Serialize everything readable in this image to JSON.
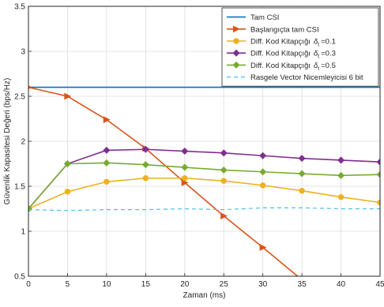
{
  "chart_data": {
    "type": "line",
    "title": "",
    "xlabel": "Zaman (ms)",
    "ylabel": "Güvenlik Kapasitesi Değeri (bps/Hz)",
    "xlim": [
      0,
      45
    ],
    "ylim": [
      0.5,
      3.5
    ],
    "xticks": [
      "0",
      "5",
      "10",
      "15",
      "20",
      "25",
      "30",
      "35",
      "40",
      "45"
    ],
    "yticks": [
      "0.5",
      "1",
      "1.5",
      "2",
      "2.5",
      "3",
      "3.5"
    ],
    "grid": true,
    "legend_position": "top-right",
    "x": [
      0,
      5,
      10,
      15,
      20,
      25,
      30,
      35,
      40,
      45
    ],
    "series": [
      {
        "name": "Tam CSI",
        "color": "#0072bd",
        "style": "solid",
        "marker": "none",
        "values": [
          2.6,
          2.6,
          2.6,
          2.6,
          2.6,
          2.6,
          2.6,
          2.6,
          2.6,
          2.6
        ]
      },
      {
        "name": "Başlangıçta tam CSI",
        "color": "#d95319",
        "style": "solid",
        "marker": "triangle-right",
        "x": [
          0,
          5,
          10,
          15,
          20,
          25,
          30,
          35
        ],
        "values": [
          2.6,
          2.5,
          2.24,
          1.92,
          1.54,
          1.17,
          0.82,
          0.46
        ]
      },
      {
        "name": "Diff. Kod Kitapçığı",
        "delta_value": "=0.1",
        "color": "#edb120",
        "style": "solid",
        "marker": "circle",
        "values": [
          1.25,
          1.44,
          1.55,
          1.59,
          1.59,
          1.56,
          1.51,
          1.45,
          1.38,
          1.32
        ]
      },
      {
        "name": "Diff. Kod Kitapçığı",
        "delta_value": "=0.3",
        "color": "#7e2f8e",
        "style": "solid",
        "marker": "diamond",
        "values": [
          1.25,
          1.75,
          1.9,
          1.91,
          1.89,
          1.87,
          1.84,
          1.81,
          1.79,
          1.77
        ]
      },
      {
        "name": "Diff. Kod Kitapçığı",
        "delta_value": "=0.5",
        "color": "#77ac30",
        "style": "solid",
        "marker": "diamond",
        "values": [
          1.25,
          1.75,
          1.76,
          1.74,
          1.71,
          1.68,
          1.66,
          1.64,
          1.62,
          1.63
        ]
      },
      {
        "name": "Rasgele Vector Nicemleyicisi 6 bit",
        "color": "#4dbeee",
        "style": "dashed",
        "marker": "none",
        "values": [
          1.24,
          1.23,
          1.24,
          1.24,
          1.25,
          1.24,
          1.26,
          1.26,
          1.25,
          1.25
        ]
      }
    ]
  }
}
